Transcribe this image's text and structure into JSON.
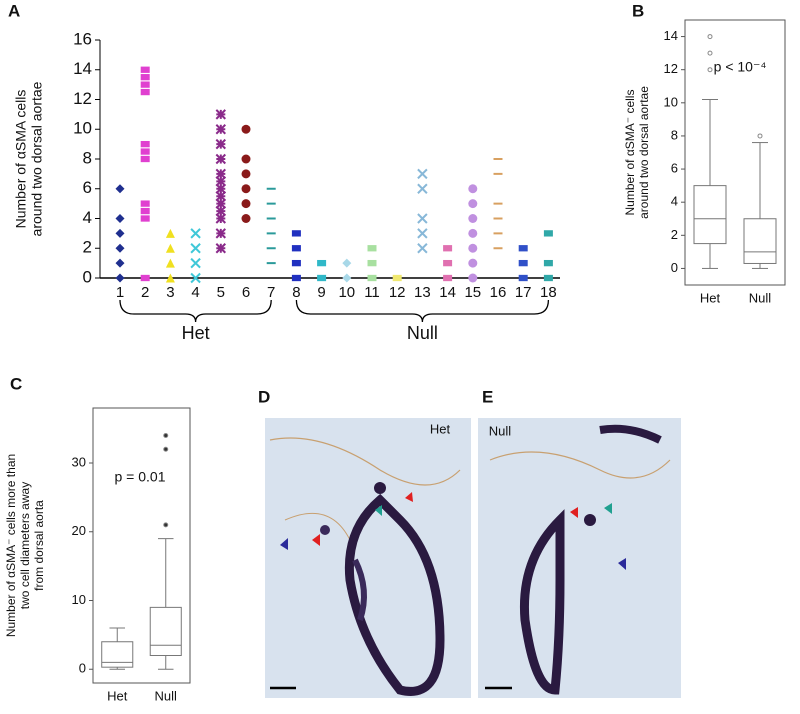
{
  "chart_data": [
    {
      "type": "strip",
      "panel": "A",
      "ylabel": [
        "Number of αSMA cells",
        "around two dorsal aortae"
      ],
      "categories": [
        "1",
        "2",
        "3",
        "4",
        "5",
        "6",
        "7",
        "8",
        "9",
        "10",
        "11",
        "12",
        "13",
        "14",
        "15",
        "16",
        "17",
        "18"
      ],
      "values": [
        [
          0,
          1,
          2,
          3,
          4,
          6
        ],
        [
          0,
          4,
          4.5,
          5,
          8,
          8.5,
          9,
          12.5,
          13,
          13.5,
          14
        ],
        [
          0,
          1,
          2,
          3
        ],
        [
          0,
          1,
          2,
          3
        ],
        [
          2,
          3,
          4,
          4.5,
          5,
          5.5,
          6,
          6.5,
          7,
          8,
          9,
          10,
          11
        ],
        [
          4,
          5,
          6,
          7,
          8,
          10
        ],
        [
          1,
          2,
          3,
          4,
          5,
          6
        ],
        [
          0,
          1,
          2,
          3
        ],
        [
          0,
          1
        ],
        [
          0,
          1
        ],
        [
          0,
          1,
          2
        ],
        [
          0
        ],
        [
          2,
          3,
          4,
          6,
          7
        ],
        [
          0,
          1,
          2
        ],
        [
          0,
          1,
          2,
          3,
          4,
          5,
          6
        ],
        [
          2,
          3,
          4,
          5,
          7,
          8
        ],
        [
          0,
          1,
          2
        ],
        [
          0,
          1,
          3
        ]
      ],
      "colors": [
        "#1f2f8f",
        "#e040d0",
        "#f0e020",
        "#40c8d8",
        "#8a2a8a",
        "#8a1a1a",
        "#2a9a9a",
        "#2030c0",
        "#30b8c8",
        "#a8d8e8",
        "#a8e0a0",
        "#f0e870",
        "#88b8d8",
        "#e070b0",
        "#c090e0",
        "#d8a060",
        "#3050c8",
        "#30a8a8"
      ],
      "markers": [
        "diamond",
        "square",
        "triangle",
        "x",
        "asterisk",
        "circle",
        "plus",
        "square",
        "square",
        "diamond",
        "square",
        "square",
        "x",
        "square",
        "circle",
        "plus",
        "square",
        "square"
      ],
      "groups": [
        {
          "label": "Het",
          "count": 7
        },
        {
          "label": "Null",
          "count": 11
        }
      ],
      "ylim": [
        0,
        16
      ],
      "yticks": [
        0,
        2,
        4,
        6,
        8,
        10,
        12,
        14,
        16
      ]
    },
    {
      "type": "box",
      "panel": "B",
      "ylabel": [
        "Number of αSMA⁻ cells",
        "around two dorsal aortae"
      ],
      "categories": [
        "Het",
        "Null"
      ],
      "boxes": [
        {
          "whislo": 0,
          "q1": 1.5,
          "med": 3,
          "q3": 5,
          "whishi": 10.2,
          "fliers": [
            12,
            13,
            14
          ]
        },
        {
          "whislo": 0,
          "q1": 0.3,
          "med": 1,
          "q3": 3,
          "whishi": 7.6,
          "fliers": [
            8
          ]
        }
      ],
      "annotation": "p < 10⁻⁴",
      "ylim": [
        -1,
        15
      ],
      "yticks": [
        0,
        2,
        4,
        6,
        8,
        10,
        12,
        14
      ]
    },
    {
      "type": "box",
      "panel": "C",
      "ylabel": [
        "Number of αSMA⁻ cells more than",
        "two cell diameters away",
        "from dorsal aorta"
      ],
      "categories": [
        "Het",
        "Null"
      ],
      "boxes": [
        {
          "whislo": 0,
          "q1": 0.3,
          "med": 1,
          "q3": 4,
          "whishi": 6,
          "fliers": []
        },
        {
          "whislo": 0,
          "q1": 2,
          "med": 3.5,
          "q3": 9,
          "whishi": 19,
          "fliers": [
            21,
            32,
            34
          ]
        }
      ],
      "annotation": "p = 0.01",
      "ylim": [
        -2,
        38
      ],
      "yticks": [
        0,
        10,
        20,
        30
      ]
    }
  ],
  "images": [
    {
      "panel": "D",
      "label": "Het"
    },
    {
      "panel": "E",
      "label": "Null"
    }
  ]
}
